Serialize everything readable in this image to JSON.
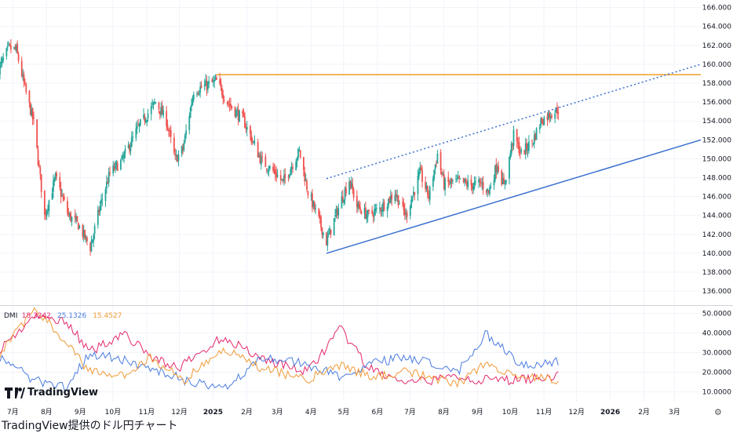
{
  "caption": "TradingView提供のドル円チャート",
  "logo_text": "TradingView",
  "settings_icon": "gear-icon",
  "colors": {
    "up": "#26a69a",
    "down": "#ef5350",
    "orange": "#f0a020",
    "blue": "#3a6fd0",
    "dmi_pink": "#e4296e",
    "dmi_blue": "#4a7ce0",
    "dmi_orange": "#f09a36",
    "grid": "#f0f3fa"
  },
  "chart_data": [
    {
      "type": "candlestick",
      "title": "",
      "y_ticks": [
        "136.000",
        "138.000",
        "140.000",
        "142.000",
        "144.000",
        "146.000",
        "148.000",
        "150.000",
        "152.000",
        "154.000",
        "156.000",
        "158.000",
        "160.000",
        "162.000",
        "164.000",
        "166.000"
      ],
      "ylim": [
        134.6,
        166.8
      ],
      "x_ticks": [
        "7月",
        "8月",
        "9月",
        "10月",
        "11月",
        "12月",
        "2025",
        "2月",
        "3月",
        "4月",
        "5月",
        "6月",
        "7月",
        "8月",
        "9月",
        "10月",
        "11月",
        "12月",
        "2026",
        "2月",
        "3月"
      ],
      "x_tick_bold": [
        "2025",
        "2026"
      ],
      "x_range": [
        "2024-06-25",
        "2026-03-31"
      ],
      "grid": true,
      "anchors": [
        {
          "date": "2024-06-24",
          "value": 159.5
        },
        {
          "date": "2024-07-03",
          "value": 161.7
        },
        {
          "date": "2024-07-10",
          "value": 161.5
        },
        {
          "date": "2024-07-18",
          "value": 157.4
        },
        {
          "date": "2024-07-26",
          "value": 153.8
        },
        {
          "date": "2024-08-05",
          "value": 144.0
        },
        {
          "date": "2024-08-15",
          "value": 148.0
        },
        {
          "date": "2024-08-27",
          "value": 144.0
        },
        {
          "date": "2024-09-05",
          "value": 143.0
        },
        {
          "date": "2024-09-16",
          "value": 140.6
        },
        {
          "date": "2024-09-25",
          "value": 145.0
        },
        {
          "date": "2024-10-04",
          "value": 148.5
        },
        {
          "date": "2024-10-15",
          "value": 149.8
        },
        {
          "date": "2024-10-30",
          "value": 153.3
        },
        {
          "date": "2024-11-15",
          "value": 156.0
        },
        {
          "date": "2024-11-25",
          "value": 154.0
        },
        {
          "date": "2024-12-03",
          "value": 149.9
        },
        {
          "date": "2024-12-10",
          "value": 151.0
        },
        {
          "date": "2024-12-20",
          "value": 157.2
        },
        {
          "date": "2025-01-10",
          "value": 158.2
        },
        {
          "date": "2025-01-20",
          "value": 156.0
        },
        {
          "date": "2025-02-04",
          "value": 154.0
        },
        {
          "date": "2025-02-20",
          "value": 149.8
        },
        {
          "date": "2025-03-05",
          "value": 148.5
        },
        {
          "date": "2025-03-12",
          "value": 147.5
        },
        {
          "date": "2025-03-27",
          "value": 150.8
        },
        {
          "date": "2025-04-04",
          "value": 146.5
        },
        {
          "date": "2025-04-14",
          "value": 143.5
        },
        {
          "date": "2025-04-21",
          "value": 141.2
        },
        {
          "date": "2025-05-01",
          "value": 144.5
        },
        {
          "date": "2025-05-12",
          "value": 147.8
        },
        {
          "date": "2025-05-19",
          "value": 145.0
        },
        {
          "date": "2025-05-29",
          "value": 144.0
        },
        {
          "date": "2025-06-10",
          "value": 144.8
        },
        {
          "date": "2025-06-23",
          "value": 146.4
        },
        {
          "date": "2025-07-03",
          "value": 144.0
        },
        {
          "date": "2025-07-16",
          "value": 148.5
        },
        {
          "date": "2025-07-24",
          "value": 146.0
        },
        {
          "date": "2025-08-01",
          "value": 150.5
        },
        {
          "date": "2025-08-07",
          "value": 147.3
        },
        {
          "date": "2025-08-20",
          "value": 147.6
        },
        {
          "date": "2025-09-01",
          "value": 147.2
        },
        {
          "date": "2025-09-10",
          "value": 147.4
        },
        {
          "date": "2025-09-17",
          "value": 146.5
        },
        {
          "date": "2025-09-25",
          "value": 149.5
        },
        {
          "date": "2025-10-01",
          "value": 147.0
        },
        {
          "date": "2025-10-10",
          "value": 152.5
        },
        {
          "date": "2025-10-17",
          "value": 150.5
        },
        {
          "date": "2025-10-28",
          "value": 152.0
        },
        {
          "date": "2025-11-04",
          "value": 154.0
        },
        {
          "date": "2025-11-13",
          "value": 154.8
        },
        {
          "date": "2025-11-20",
          "value": 155.2
        }
      ],
      "lines": [
        {
          "name": "orange-horizontal",
          "color": "orange",
          "style": "solid",
          "from": {
            "date": "2025-01-10",
            "value": 158.9
          },
          "to": {
            "date": "2026-03-31",
            "value": 158.9
          }
        },
        {
          "name": "blue-support",
          "color": "blue",
          "style": "solid",
          "from": {
            "date": "2025-04-21",
            "value": 140.0
          },
          "to": {
            "date": "2026-03-31",
            "value": 152.0
          }
        },
        {
          "name": "blue-dotted-resistance",
          "color": "blue",
          "style": "dotted",
          "from": {
            "date": "2025-04-21",
            "value": 147.9
          },
          "to": {
            "date": "2026-03-31",
            "value": 160.0
          }
        }
      ]
    },
    {
      "type": "line",
      "title": "DMI",
      "legend": [
        {
          "name": "DMI",
          "value": "",
          "color": "#131722"
        },
        {
          "name": "",
          "value": "18.3242",
          "color": "dmi_pink"
        },
        {
          "name": "",
          "value": "25.1326",
          "color": "dmi_blue"
        },
        {
          "name": "",
          "value": "15.4527",
          "color": "dmi_orange"
        }
      ],
      "y_ticks": [
        "10.0000",
        "20.0000",
        "30.0000",
        "40.0000",
        "50.0000"
      ],
      "ylim": [
        5,
        53
      ],
      "series": [
        {
          "color": "dmi_pink",
          "anchors": [
            [
              0,
              32
            ],
            [
              0.06,
              48
            ],
            [
              0.12,
              46
            ],
            [
              0.16,
              30
            ],
            [
              0.22,
              40
            ],
            [
              0.27,
              28
            ],
            [
              0.32,
              22
            ],
            [
              0.4,
              38
            ],
            [
              0.47,
              27
            ],
            [
              0.55,
              20
            ],
            [
              0.61,
              42
            ],
            [
              0.66,
              22
            ],
            [
              0.73,
              14
            ],
            [
              0.82,
              18
            ],
            [
              0.86,
              16
            ],
            [
              0.92,
              16
            ],
            [
              1,
              18.3
            ]
          ]
        },
        {
          "color": "dmi_blue",
          "anchors": [
            [
              0,
              28
            ],
            [
              0.06,
              16
            ],
            [
              0.12,
              12
            ],
            [
              0.16,
              30
            ],
            [
              0.22,
              26
            ],
            [
              0.27,
              22
            ],
            [
              0.33,
              16
            ],
            [
              0.4,
              11
            ],
            [
              0.47,
              28
            ],
            [
              0.55,
              24
            ],
            [
              0.61,
              18
            ],
            [
              0.66,
              24
            ],
            [
              0.73,
              28
            ],
            [
              0.82,
              20
            ],
            [
              0.87,
              40
            ],
            [
              0.93,
              24
            ],
            [
              1,
              25.1
            ]
          ]
        },
        {
          "color": "dmi_orange",
          "anchors": [
            [
              0,
              30
            ],
            [
              0.06,
              52
            ],
            [
              0.12,
              36
            ],
            [
              0.16,
              20
            ],
            [
              0.22,
              18
            ],
            [
              0.27,
              28
            ],
            [
              0.33,
              16
            ],
            [
              0.4,
              32
            ],
            [
              0.47,
              22
            ],
            [
              0.55,
              16
            ],
            [
              0.61,
              24
            ],
            [
              0.66,
              18
            ],
            [
              0.73,
              20
            ],
            [
              0.82,
              14
            ],
            [
              0.87,
              24
            ],
            [
              0.93,
              18
            ],
            [
              1,
              15.5
            ]
          ]
        }
      ]
    }
  ]
}
